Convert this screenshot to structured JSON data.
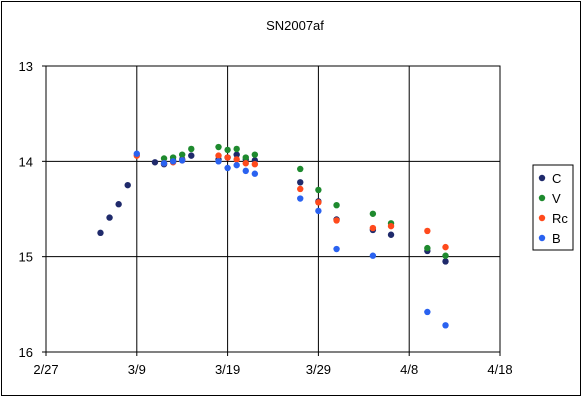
{
  "chart_data": {
    "type": "scatter",
    "title": "SN2007af",
    "x_ticks": [
      "2/27",
      "3/9",
      "3/19",
      "3/29",
      "4/8",
      "4/18"
    ],
    "y_ticks": [
      "13",
      "14",
      "15",
      "16"
    ],
    "ylim": [
      13,
      16
    ],
    "y_inverted": true,
    "xlim": [
      "2/27",
      "4/18"
    ],
    "grid": true,
    "legend_position": "right",
    "series": [
      {
        "name": "C",
        "color": "#1f2a6b",
        "points": [
          [
            "3/5",
            14.75
          ],
          [
            "3/6",
            14.59
          ],
          [
            "3/7",
            14.45
          ],
          [
            "3/8",
            14.25
          ],
          [
            "3/11",
            14.01
          ],
          [
            "3/12",
            14.03
          ],
          [
            "3/13",
            13.99
          ],
          [
            "3/14",
            13.98
          ],
          [
            "3/15",
            13.94
          ],
          [
            "3/18",
            13.98
          ],
          [
            "3/19",
            13.96
          ],
          [
            "3/20",
            13.93
          ],
          [
            "3/21",
            13.98
          ],
          [
            "3/22",
            13.99
          ],
          [
            "3/27",
            14.22
          ],
          [
            "3/29",
            14.42
          ],
          [
            "3/31",
            14.61
          ],
          [
            "4/4",
            14.72
          ],
          [
            "4/6",
            14.77
          ],
          [
            "4/10",
            14.94
          ],
          [
            "4/12",
            15.05
          ]
        ]
      },
      {
        "name": "V",
        "color": "#1e8a2e",
        "points": [
          [
            "3/12",
            13.97
          ],
          [
            "3/13",
            13.96
          ],
          [
            "3/14",
            13.93
          ],
          [
            "3/15",
            13.87
          ],
          [
            "3/18",
            13.85
          ],
          [
            "3/19",
            13.88
          ],
          [
            "3/20",
            13.87
          ],
          [
            "3/21",
            13.96
          ],
          [
            "3/22",
            13.93
          ],
          [
            "3/27",
            14.08
          ],
          [
            "3/29",
            14.3
          ],
          [
            "3/31",
            14.46
          ],
          [
            "4/4",
            14.55
          ],
          [
            "4/6",
            14.65
          ],
          [
            "4/10",
            14.91
          ],
          [
            "4/12",
            14.99
          ]
        ]
      },
      {
        "name": "Rc",
        "color": "#ff4a1c",
        "points": [
          [
            "3/9",
            13.94
          ],
          [
            "3/12",
            14.02
          ],
          [
            "3/13",
            14.01
          ],
          [
            "3/14",
            13.99
          ],
          [
            "3/18",
            13.94
          ],
          [
            "3/19",
            13.96
          ],
          [
            "3/20",
            13.98
          ],
          [
            "3/21",
            14.02
          ],
          [
            "3/22",
            14.03
          ],
          [
            "3/27",
            14.29
          ],
          [
            "3/29",
            14.43
          ],
          [
            "3/31",
            14.62
          ],
          [
            "4/4",
            14.7
          ],
          [
            "4/6",
            14.68
          ],
          [
            "4/10",
            14.73
          ],
          [
            "4/12",
            14.9
          ]
        ]
      },
      {
        "name": "B",
        "color": "#2a62f0",
        "points": [
          [
            "3/9",
            13.92
          ],
          [
            "3/12",
            14.02
          ],
          [
            "3/13",
            14.0
          ],
          [
            "3/14",
            13.99
          ],
          [
            "3/18",
            14.0
          ],
          [
            "3/19",
            14.07
          ],
          [
            "3/20",
            14.04
          ],
          [
            "3/21",
            14.1
          ],
          [
            "3/22",
            14.13
          ],
          [
            "3/27",
            14.39
          ],
          [
            "3/29",
            14.52
          ],
          [
            "3/31",
            14.92
          ],
          [
            "4/4",
            14.99
          ],
          [
            "4/10",
            15.58
          ],
          [
            "4/12",
            15.72
          ]
        ]
      }
    ]
  }
}
